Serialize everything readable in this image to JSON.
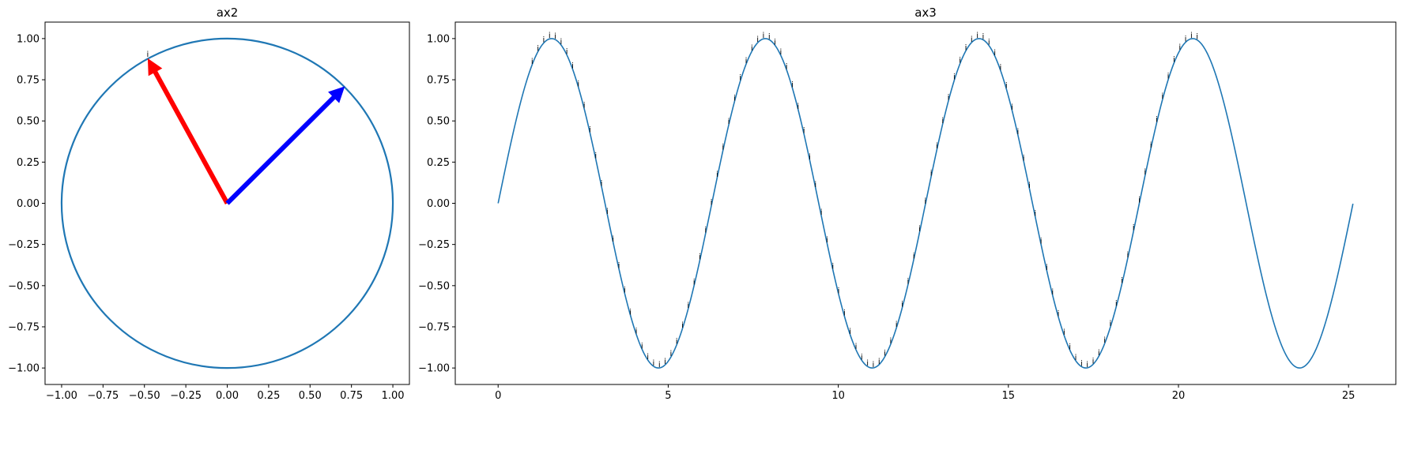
{
  "chart_data": [
    {
      "type": "line",
      "title": "ax2",
      "xlabel": "",
      "ylabel": "",
      "xlim": [
        -1.1,
        1.1
      ],
      "ylim": [
        -1.1,
        1.1
      ],
      "xticks": [
        -1.0,
        -0.75,
        -0.5,
        -0.25,
        0.0,
        0.25,
        0.5,
        0.75,
        1.0
      ],
      "yticks": [
        -1.0,
        -0.75,
        -0.5,
        -0.25,
        0.0,
        0.25,
        0.5,
        0.75,
        1.0
      ],
      "xtick_labels": [
        "−1.00",
        "−0.75",
        "−0.50",
        "−0.25",
        "0.00",
        "0.25",
        "0.50",
        "0.75",
        "1.00"
      ],
      "ytick_labels": [
        "−1.00",
        "−0.75",
        "−0.50",
        "−0.25",
        "0.00",
        "0.25",
        "0.50",
        "0.75",
        "1.00"
      ],
      "series": [
        {
          "kind": "circle",
          "center": [
            0,
            0
          ],
          "radius": 1.0,
          "color": "#1f77b4"
        }
      ],
      "arrows": [
        {
          "from": [
            0,
            0
          ],
          "to": [
            -0.48,
            0.88
          ],
          "color": "#ff0000"
        },
        {
          "from": [
            0,
            0
          ],
          "to": [
            0.71,
            0.71
          ],
          "color": "#0000ff"
        }
      ],
      "annotations": [
        {
          "text": "i",
          "x": -0.48,
          "y": 0.88
        }
      ],
      "grid": false
    },
    {
      "type": "line",
      "title": "ax3",
      "xlabel": "",
      "ylabel": "",
      "xlim": [
        -1.26,
        26.39
      ],
      "ylim": [
        -1.1,
        1.1
      ],
      "xticks": [
        0,
        5,
        10,
        15,
        20,
        25
      ],
      "yticks": [
        -1.0,
        -0.75,
        -0.5,
        -0.25,
        0.0,
        0.25,
        0.5,
        0.75,
        1.0
      ],
      "xtick_labels": [
        "0",
        "5",
        "10",
        "15",
        "20",
        "25"
      ],
      "ytick_labels": [
        "−1.00",
        "−0.75",
        "−0.50",
        "−0.25",
        "0.00",
        "0.25",
        "0.50",
        "0.75",
        "1.00"
      ],
      "series": [
        {
          "function": "sin",
          "x_range": [
            0,
            25.13
          ],
          "color": "#1f77b4"
        }
      ],
      "annotations": {
        "text": "i",
        "x_range": [
          1.0,
          20.7
        ],
        "step": 0.17,
        "on_curve": "sin"
      },
      "grid": false
    }
  ]
}
